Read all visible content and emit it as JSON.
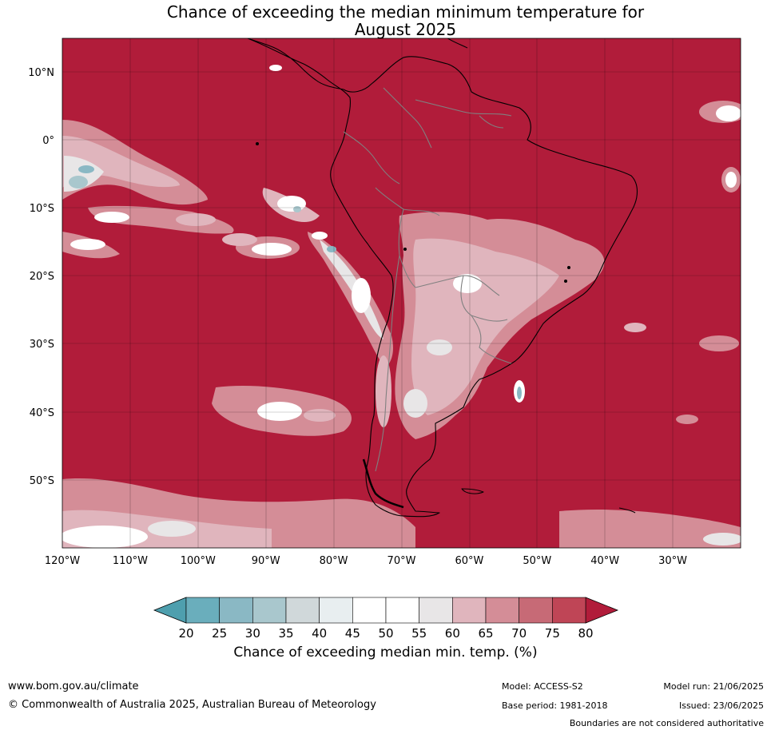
{
  "title": {
    "line1": "Chance of exceeding the median minimum temperature for",
    "line2": "August 2025"
  },
  "map": {
    "lat_labels": [
      "10°N",
      "0°",
      "10°S",
      "20°S",
      "30°S",
      "40°S",
      "50°S"
    ],
    "lon_labels": [
      "120°W",
      "110°W",
      "100°W",
      "90°W",
      "80°W",
      "70°W",
      "60°W",
      "50°W",
      "40°W",
      "30°W"
    ],
    "dominant_color": "#b11c3a",
    "boundary_color": "#000000",
    "country_border_color": "#808080"
  },
  "colorbar": {
    "ticks": [
      "20",
      "25",
      "30",
      "35",
      "40",
      "45",
      "50",
      "55",
      "60",
      "65",
      "70",
      "75",
      "80"
    ],
    "colors": [
      "#6aaebc",
      "#8ab8c4",
      "#a9c7cd",
      "#d0d8da",
      "#e8eef0",
      "#ffffff",
      "#ffffff",
      "#e8e6e7",
      "#e0b5bd",
      "#d48d97",
      "#c76a76",
      "#bf4556"
    ],
    "under_color": "#4e9fae",
    "over_color": "#b11c3a",
    "label": "Chance of exceeding median min. temp. (%)"
  },
  "footer": {
    "url": "www.bom.gov.au/climate",
    "copyright": "© Commonwealth of Australia 2025, Australian Bureau of Meteorology",
    "model": "Model: ACCESS-S2",
    "base_period": "Base period: 1981-2018",
    "model_run": "Model run: 21/06/2025",
    "issued": "Issued: 23/06/2025",
    "disclaimer": "Boundaries are not considered authoritative"
  }
}
